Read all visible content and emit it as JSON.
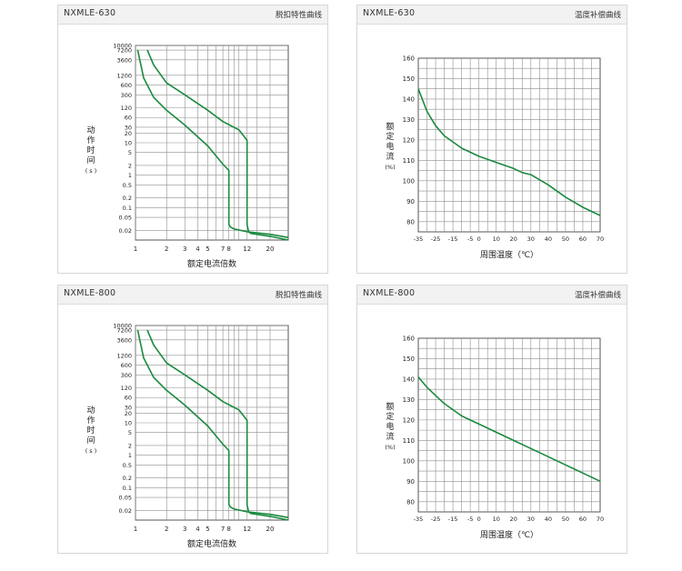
{
  "colors": {
    "curve": "#1a8a3e",
    "grid": "#8f8f8f",
    "frame": "#555555"
  },
  "charts": [
    {
      "id": "trip-630",
      "header": {
        "title": "NXMLE-630",
        "subtitle": "脱扣特性曲线"
      },
      "xlabel": "额定电流倍数",
      "ylabel_chars": [
        "动",
        "作",
        "时",
        "间",
        "( s )"
      ],
      "xticks": [
        "1",
        "2",
        "3",
        "4",
        "5",
        "7",
        "8",
        "12",
        "20"
      ],
      "yticks": [
        "10000",
        "7200",
        "3600",
        "1200",
        "600",
        "300",
        "120",
        "60",
        "30",
        "20",
        "10",
        "5",
        "2",
        "1",
        "0.5",
        "0.2",
        "0.1",
        "0.05",
        "0.02"
      ]
    },
    {
      "id": "temp-630",
      "header": {
        "title": "NXMLE-630",
        "subtitle": "温度补偿曲线"
      },
      "xlabel": "周围温度（℃）",
      "ylabel_chars": [
        "额",
        "定",
        "电",
        "流",
        "(%)"
      ],
      "xticks": [
        "-35",
        "-25",
        "-15",
        "-5",
        "0",
        "10",
        "20",
        "30",
        "40",
        "50",
        "60",
        "70"
      ],
      "yticks": [
        "160",
        "150",
        "140",
        "130",
        "120",
        "110",
        "100",
        "90",
        "80"
      ]
    },
    {
      "id": "trip-800",
      "header": {
        "title": "NXMLE-800",
        "subtitle": "脱扣特性曲线"
      },
      "xlabel": "额定电流倍数",
      "ylabel_chars": [
        "动",
        "作",
        "时",
        "间",
        "( s )"
      ],
      "xticks": [
        "1",
        "2",
        "3",
        "4",
        "5",
        "7",
        "8",
        "12",
        "20"
      ],
      "yticks": [
        "10000",
        "7200",
        "3600",
        "1200",
        "600",
        "300",
        "120",
        "60",
        "30",
        "20",
        "10",
        "5",
        "2",
        "1",
        "0.5",
        "0.2",
        "0.1",
        "0.05",
        "0.02"
      ]
    },
    {
      "id": "temp-800",
      "header": {
        "title": "NXMLE-800",
        "subtitle": "温度补偿曲线"
      },
      "xlabel": "周围温度（℃）",
      "ylabel_chars": [
        "额",
        "定",
        "电",
        "流",
        "(%)"
      ],
      "xticks": [
        "-35",
        "-25",
        "-15",
        "-5",
        "0",
        "10",
        "20",
        "30",
        "40",
        "50",
        "60",
        "70"
      ],
      "yticks": [
        "160",
        "150",
        "140",
        "130",
        "120",
        "110",
        "100",
        "90",
        "80"
      ]
    }
  ],
  "chart_data": [
    {
      "type": "line",
      "title": "脱扣特性曲线",
      "xlabel": "额定电流倍数",
      "ylabel": "动作时间 (s)",
      "yscale": "log",
      "xlim": [
        0,
        30
      ],
      "ylim": [
        0.01,
        10000
      ],
      "series": [
        {
          "x": [
            1.05,
            1.2,
            1.5,
            2,
            3,
            5,
            7,
            8,
            8,
            8.3,
            9,
            12,
            20,
            30
          ],
          "y": [
            7200,
            1000,
            250,
            100,
            35,
            8,
            2.2,
            1.4,
            0.03,
            0.025,
            0.022,
            0.018,
            0.015,
            0.012
          ]
        },
        {
          "x": [
            1.3,
            1.5,
            2,
            3,
            5,
            7,
            10,
            12,
            12,
            12.4,
            13,
            20,
            30
          ],
          "y": [
            7200,
            2500,
            700,
            300,
            100,
            45,
            25,
            12,
            0.03,
            0.018,
            0.016,
            0.013,
            0.01
          ]
        }
      ]
    },
    {
      "type": "line",
      "xlabel": "周围温度（℃）",
      "ylabel": "额定电流 (%)",
      "xlim": [
        -35,
        70
      ],
      "ylim": [
        75,
        160
      ],
      "series": [
        {
          "x": [
            -35,
            -30,
            -25,
            -20,
            -15,
            -10,
            -5,
            0,
            10,
            20,
            25,
            30,
            40,
            50,
            60,
            70
          ],
          "y": [
            145,
            134,
            127,
            122,
            119,
            116,
            114,
            112,
            109,
            106,
            104,
            103,
            98,
            92,
            87,
            83
          ]
        }
      ]
    },
    {
      "type": "line",
      "title": "脱扣特性曲线",
      "xlabel": "额定电流倍数",
      "ylabel": "动作时间 (s)",
      "yscale": "log",
      "xlim": [
        0,
        30
      ],
      "ylim": [
        0.01,
        10000
      ],
      "series": [
        {
          "x": [
            1.05,
            1.2,
            1.5,
            2,
            3,
            5,
            7,
            8,
            8,
            8.3,
            9,
            12,
            20,
            30
          ],
          "y": [
            7200,
            1000,
            250,
            100,
            35,
            8,
            2.2,
            1.4,
            0.03,
            0.025,
            0.022,
            0.018,
            0.015,
            0.012
          ]
        },
        {
          "x": [
            1.3,
            1.5,
            2,
            3,
            5,
            7,
            10,
            12,
            12,
            12.4,
            13,
            20,
            30
          ],
          "y": [
            7200,
            2500,
            700,
            300,
            100,
            45,
            25,
            12,
            0.03,
            0.018,
            0.016,
            0.013,
            0.01
          ]
        }
      ]
    },
    {
      "type": "line",
      "xlabel": "周围温度（℃）",
      "ylabel": "额定电流 (%)",
      "xlim": [
        -35,
        70
      ],
      "ylim": [
        75,
        160
      ],
      "series": [
        {
          "x": [
            -35,
            -30,
            -25,
            -20,
            -15,
            -10,
            -5,
            0,
            10,
            20,
            30,
            40,
            50,
            60,
            70
          ],
          "y": [
            141,
            136,
            132,
            128,
            125,
            122,
            120,
            118,
            114,
            110,
            106,
            102,
            98,
            94,
            90
          ]
        }
      ]
    }
  ]
}
